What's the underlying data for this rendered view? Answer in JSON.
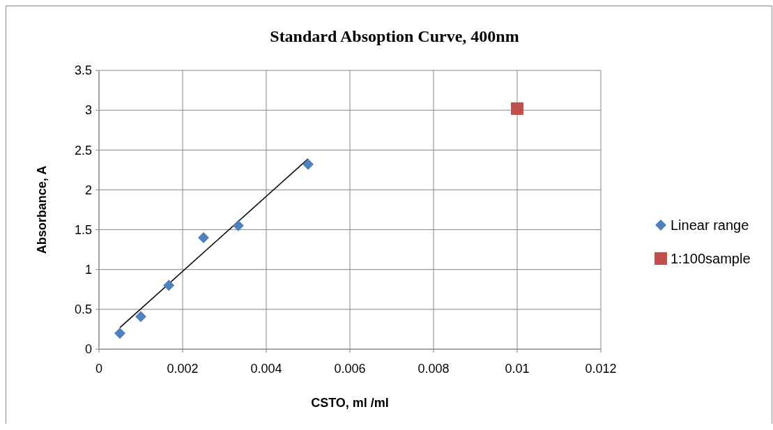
{
  "chart_data": {
    "type": "scatter",
    "title": "Standard Absoption Curve, 400nm",
    "xlabel": "CSTO, ml /ml",
    "ylabel": "Absorbance, A",
    "xlim": [
      0,
      0.012
    ],
    "ylim": [
      0,
      3.5
    ],
    "xticks": [
      0,
      0.002,
      0.004,
      0.006,
      0.008,
      0.01,
      0.012
    ],
    "yticks": [
      0,
      0.5,
      1,
      1.5,
      2,
      2.5,
      3,
      3.5
    ],
    "grid": true,
    "legend": "right",
    "series": [
      {
        "name": "Linear range",
        "marker": "diamond",
        "color": "#4f81bd",
        "x": [
          0.0005,
          0.001,
          0.00167,
          0.0025,
          0.00333,
          0.005
        ],
        "values": [
          0.2,
          0.41,
          0.8,
          1.4,
          1.55,
          2.32
        ]
      },
      {
        "name": "1:100sample",
        "marker": "square",
        "color": "#c0504d",
        "x": [
          0.01
        ],
        "values": [
          3.02
        ]
      },
      {
        "type": "line",
        "marker": "none",
        "color": "#000000",
        "x": [
          0.0005,
          0.005
        ],
        "values": [
          0.27,
          2.39
        ]
      }
    ]
  }
}
